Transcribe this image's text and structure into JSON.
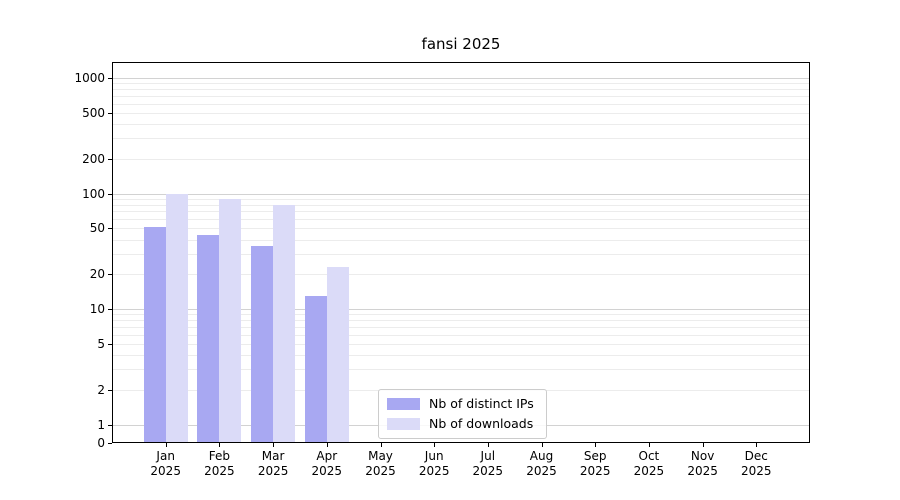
{
  "chart_data": {
    "type": "bar",
    "title": "fansi 2025",
    "yscale": "symlog",
    "ylim": [
      0,
      1300
    ],
    "yticks": [
      0,
      1,
      2,
      5,
      10,
      20,
      50,
      100,
      200,
      500,
      1000
    ],
    "grid": "horizontal log gridlines, decade lines darker, minors lighter",
    "categories": [
      "Jan",
      "Feb",
      "Mar",
      "Apr",
      "May",
      "Jun",
      "Jul",
      "Aug",
      "Sep",
      "Oct",
      "Nov",
      "Dec"
    ],
    "x_year_label": "2025",
    "series": [
      {
        "name": "Nb of distinct IPs",
        "color": "#a8a8f2",
        "values": [
          51,
          44,
          35,
          13,
          0,
          0,
          0,
          0,
          0,
          0,
          0,
          0
        ]
      },
      {
        "name": "Nb of downloads",
        "color": "#dbdbf8",
        "values": [
          100,
          90,
          80,
          23,
          0,
          0,
          0,
          0,
          0,
          0,
          0,
          0
        ]
      }
    ],
    "legend": {
      "position": "inside-bottom-center-left"
    }
  }
}
